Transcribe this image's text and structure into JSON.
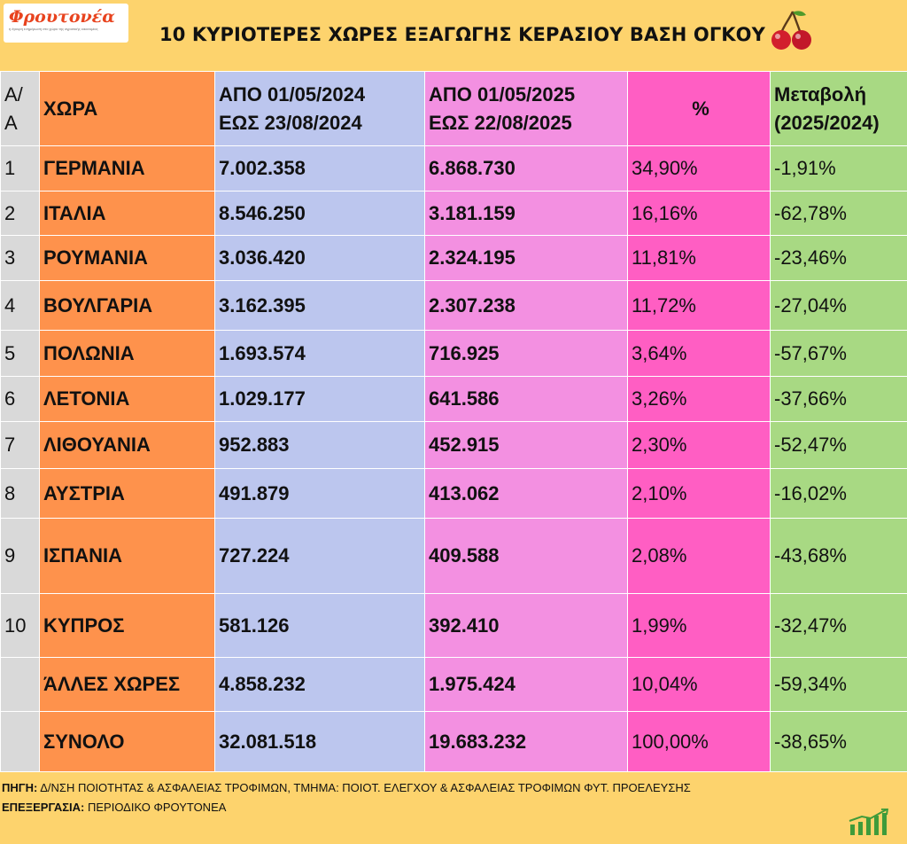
{
  "logo": {
    "brand": "Φρουτονέα",
    "tagline": "η έγκυρη ενημέρωση στο χώρο της αγροτικής οικονομίας"
  },
  "title": "10 ΚΥΡΙΟΤΕΡΕΣ ΧΩΡΕΣ ΕΞΑΓΩΓΗΣ ΚΕΡΑΣΙΟΥ ΒΑΣΗ ΟΓΚΟΥ",
  "colors": {
    "background": "#fdd36d",
    "index": "#d9d9d9",
    "country": "#fe924c",
    "period_2024": "#bcc6ee",
    "period_2025": "#f390e1",
    "share": "#ff5ec3",
    "change": "#a8d983"
  },
  "header": {
    "aa": [
      "Α/",
      "Α"
    ],
    "country": "ΧΩΡΑ",
    "period_2024": [
      "ΑΠΟ 01/05/2024",
      "ΕΩΣ  23/08/2024"
    ],
    "period_2025": [
      "ΑΠΟ 01/05/2025",
      "ΕΩΣ  22/08/2025"
    ],
    "share": "%",
    "change": [
      "Μεταβολή",
      "(2025/2024)"
    ]
  },
  "rows": [
    {
      "aa": "1",
      "country": "ΓΕΡΜΑΝΙΑ",
      "v2024": "7.002.358",
      "v2025": "6.868.730",
      "share": "34,90%",
      "change": "-1,91%"
    },
    {
      "aa": "2",
      "country": "ΙΤΑΛΙΑ",
      "v2024": "8.546.250",
      "v2025": "3.181.159",
      "share": "16,16%",
      "change": "-62,78%"
    },
    {
      "aa": "3",
      "country": "ΡΟΥΜΑΝΙΑ",
      "v2024": "3.036.420",
      "v2025": "2.324.195",
      "share": "11,81%",
      "change": "-23,46%"
    },
    {
      "aa": "4",
      "country": "ΒΟΥΛΓΑΡΙΑ",
      "v2024": "3.162.395",
      "v2025": "2.307.238",
      "share": "11,72%",
      "change": "-27,04%"
    },
    {
      "aa": "5",
      "country": "ΠΟΛΩΝΙΑ",
      "v2024": "1.693.574",
      "v2025": "716.925",
      "share": "3,64%",
      "change": "-57,67%"
    },
    {
      "aa": "6",
      "country": "ΛΕΤΟΝΙΑ",
      "v2024": "1.029.177",
      "v2025": "641.586",
      "share": "3,26%",
      "change": "-37,66%"
    },
    {
      "aa": "7",
      "country": "ΛΙΘΟΥΑΝΙΑ",
      "v2024": "952.883",
      "v2025": "452.915",
      "share": "2,30%",
      "change": "-52,47%"
    },
    {
      "aa": "8",
      "country": "ΑΥΣΤΡΙΑ",
      "v2024": "491.879",
      "v2025": "413.062",
      "share": "2,10%",
      "change": "-16,02%"
    },
    {
      "aa": "9",
      "country": "ΙΣΠΑΝΙΑ",
      "v2024": "727.224",
      "v2025": "409.588",
      "share": "2,08%",
      "change": "-43,68%"
    },
    {
      "aa": "10",
      "country": "ΚΥΠΡΟΣ",
      "v2024": "581.126",
      "v2025": "392.410",
      "share": "1,99%",
      "change": "-32,47%"
    },
    {
      "aa": "",
      "country": "ΆΛΛΕΣ ΧΩΡΕΣ",
      "v2024": "4.858.232",
      "v2025": "1.975.424",
      "share": "10,04%",
      "change": "-59,34%"
    },
    {
      "aa": "",
      "country": "ΣΥΝΟΛΟ",
      "v2024": "32.081.518",
      "v2025": "19.683.232",
      "share": "100,00%",
      "change": "-38,65%"
    }
  ],
  "footer": {
    "source_label": "ΠΗΓΗ:",
    "source_text": "Δ/ΝΣΗ ΠΟΙΟΤΗΤΑΣ & ΑΣΦΑΛΕΙΑΣ ΤΡΟΦΙΜΩΝ, ΤΜΗΜΑ: ΠΟΙΟΤ. ΕΛΕΓΧΟΥ & ΑΣΦΑΛΕΙΑΣ ΤΡΟΦΙΜΩΝ ΦΥΤ. ΠΡΟΕΛΕΥΣΗΣ",
    "processing_label": "ΕΠΕΞΕΡΓΑΣΙΑ:",
    "processing_text": "ΠΕΡΙΟΔΙΚΟ ΦΡΟΥΤΟΝΕΑ"
  },
  "icons": {
    "logo": "frutonea-logo",
    "cherry": "cherry-icon",
    "growth": "growth-chart-icon"
  }
}
